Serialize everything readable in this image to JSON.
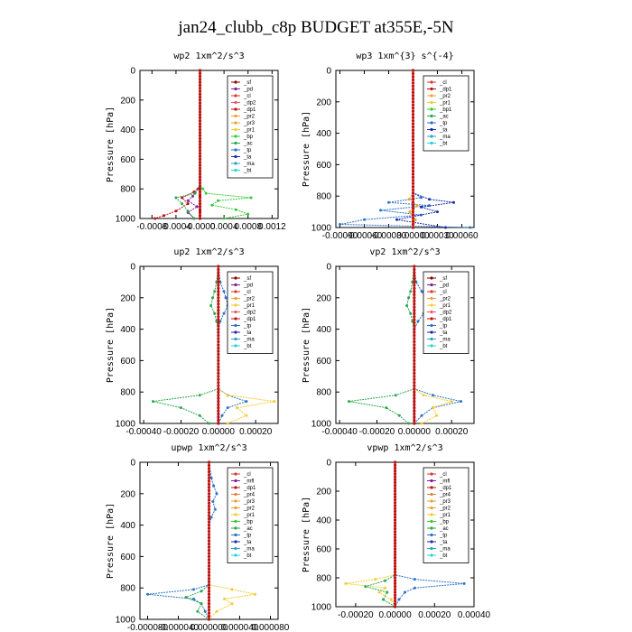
{
  "figure": {
    "title": "jan24_clubb_c8p  BUDGET at355E,-5N"
  },
  "colors": {
    "sf": "#8b0000",
    "pd": "#7a1fa2",
    "cl": "#d43a2a",
    "dp2": "#e0606b",
    "dp1": "#c01010",
    "pr2": "#f0a030",
    "pr1": "#f2cc33",
    "pr3": "#f0a030",
    "pr4": "#e08040",
    "bp": "#33cc33",
    "bp1": "#33cc33",
    "ac": "#2aa84a",
    "tp": "#2b73c8",
    "ta": "#1a2ba8",
    "ma": "#30a0c8",
    "bt": "#27d4d4",
    "mfl": "#7a1fa2"
  },
  "chart_data": [
    {
      "type": "line",
      "title": "wp2  1xm^2/s^3",
      "ylabel": "Pressure [hPa]",
      "xlim": [
        -0.001,
        0.0013
      ],
      "ylim": [
        0,
        1000
      ],
      "xticks": [
        -0.0008,
        -0.0004,
        0.0,
        0.0004,
        0.0008,
        0.0012
      ],
      "xtick_labels": [
        "-0.0008",
        "-0.0004",
        "-0.0000",
        "0.0004",
        "0.0008",
        "0.0012"
      ],
      "yticks": [
        0,
        200,
        400,
        600,
        800,
        1000
      ],
      "legend_position": "top-right",
      "legend": [
        "_sf",
        "_pd",
        "_cl",
        "_dp2",
        "_dp1",
        "_pr2",
        "_pr3",
        "_pr1",
        "_bp",
        "_ac",
        "_tp",
        "_ta",
        "_ma",
        "_bt"
      ],
      "series": [
        {
          "name": "_sf",
          "key": "sf",
          "p": [
            0,
            780,
            800,
            850,
            900,
            950,
            1000
          ],
          "x": [
            0,
            0,
            0,
            0,
            0,
            0,
            0
          ]
        },
        {
          "name": "_pd",
          "key": "pd",
          "p": [
            0,
            780,
            800,
            850,
            880,
            920,
            960,
            1000
          ],
          "x": [
            0,
            0,
            -3e-05,
            -0.00012,
            -0.0002,
            -5e-05,
            -0.0002,
            -0.0001
          ]
        },
        {
          "name": "_dp1",
          "key": "dp1",
          "p": [
            0,
            780,
            820,
            860,
            900,
            950,
            980,
            1000
          ],
          "x": [
            0,
            0,
            -0.0001,
            -0.0003,
            -0.0002,
            -0.0004,
            -0.0006,
            -0.00075
          ]
        },
        {
          "name": "_bp",
          "key": "bp",
          "p": [
            0,
            780,
            800,
            830,
            860,
            880,
            910,
            940,
            970,
            1000
          ],
          "x": [
            0,
            0,
            5e-05,
            0.0001,
            0.00085,
            0.0003,
            0.0002,
            0.0006,
            0.0008,
            0.0004
          ]
        },
        {
          "name": "_ac",
          "key": "ac",
          "p": [
            0,
            780,
            830,
            860,
            900,
            950,
            1000
          ],
          "x": [
            0,
            0,
            -8e-05,
            -0.0004,
            -0.0003,
            -0.0002,
            -0.0001
          ]
        }
      ]
    },
    {
      "type": "line",
      "title": "wp3  1xm^{3} s^{-4}",
      "ylabel": "Pressure [hPa]",
      "xlim": [
        -0.00095,
        0.00075
      ],
      "ylim": [
        0,
        1000
      ],
      "xticks": [
        -0.0009,
        -0.0006,
        -0.0003,
        0.0,
        0.0003,
        0.0006
      ],
      "xtick_labels": [
        "-0.00090",
        "-0.00060",
        "-0.00030",
        "0.00000",
        "0.00030",
        "0.00060"
      ],
      "yticks": [
        0,
        200,
        400,
        600,
        800,
        1000
      ],
      "legend_position": "top-right",
      "legend": [
        "_cl",
        "_dp1",
        "_pr2",
        "_pr1",
        "_bp1",
        "_ac",
        "_tp",
        "_ta",
        "_ma",
        "_bt"
      ],
      "series": [
        {
          "name": "_cl",
          "key": "cl",
          "p": [
            0,
            1000
          ],
          "x": [
            0,
            0
          ]
        },
        {
          "name": "_tp",
          "key": "tp",
          "p": [
            0,
            780,
            810,
            840,
            860,
            890,
            920,
            950,
            980,
            1000
          ],
          "x": [
            0,
            0,
            0.0001,
            -0.0003,
            0.0002,
            -0.0004,
            0.0001,
            -0.0006,
            -0.0009,
            0.0007
          ]
        },
        {
          "name": "_ta",
          "key": "ta",
          "p": [
            0,
            780,
            820,
            840,
            870,
            900,
            950,
            1000
          ],
          "x": [
            0,
            0,
            0.0002,
            0.0005,
            0.0001,
            0.0003,
            -0.0002,
            0.0004
          ]
        },
        {
          "name": "_pr2",
          "key": "pr2",
          "p": [
            0,
            780,
            820,
            860,
            900,
            950,
            1000
          ],
          "x": [
            0,
            0,
            -5e-05,
            5e-05,
            -4e-05,
            3e-05,
            0
          ]
        }
      ]
    },
    {
      "type": "line",
      "title": "up2  1xm^2/s^3",
      "ylabel": "Pressure [hPa]",
      "xlim": [
        -0.00042,
        0.00032
      ],
      "ylim": [
        0,
        1000
      ],
      "xticks": [
        -0.0004,
        -0.0002,
        0.0,
        0.0002
      ],
      "xtick_labels": [
        "-0.00040",
        "-0.00020",
        "0.00000",
        "0.00020"
      ],
      "yticks": [
        0,
        200,
        400,
        600,
        800,
        1000
      ],
      "legend_position": "top-right",
      "legend": [
        "_sf",
        "_pd",
        "_cl",
        "_pr2",
        "_pr1",
        "_dp2",
        "_dp1",
        "_tp",
        "_ta",
        "_ma",
        "_bt"
      ],
      "series": [
        {
          "name": "_sf",
          "key": "sf",
          "p": [
            0,
            1000
          ],
          "x": [
            0,
            0
          ]
        },
        {
          "name": "_tp",
          "key": "tp",
          "p": [
            0,
            100,
            160,
            200,
            250,
            300,
            350,
            400,
            780,
            820,
            860,
            900,
            950,
            1000
          ],
          "x": [
            0,
            1e-05,
            3e-05,
            4e-05,
            5e-05,
            3e-05,
            1e-05,
            0,
            0,
            5e-05,
            0.00015,
            5e-05,
            2e-05,
            0
          ]
        },
        {
          "name": "_ac",
          "key": "ac",
          "p": [
            0,
            100,
            160,
            200,
            250,
            300,
            350,
            400,
            780,
            820,
            860,
            900,
            950,
            1000
          ],
          "x": [
            0,
            -1e-05,
            -2e-05,
            -3e-05,
            -4e-05,
            -2e-05,
            -1e-05,
            0,
            0,
            -0.0001,
            -0.00035,
            -0.0002,
            -0.0001,
            -5e-05
          ]
        },
        {
          "name": "_pr1",
          "key": "pr1",
          "p": [
            0,
            780,
            820,
            860,
            900,
            950,
            1000
          ],
          "x": [
            0,
            0,
            5e-05,
            0.0003,
            0.0001,
            0.00015,
            5e-05
          ]
        }
      ]
    },
    {
      "type": "line",
      "title": "vp2  1xm^2/s^3",
      "ylabel": "Pressure [hPa]",
      "xlim": [
        -0.00042,
        0.00032
      ],
      "ylim": [
        0,
        1000
      ],
      "xticks": [
        -0.0004,
        -0.0002,
        0.0,
        0.0002
      ],
      "xtick_labels": [
        "-0.00040",
        "-0.00020",
        "0.00000",
        "0.00020"
      ],
      "yticks": [
        0,
        200,
        400,
        600,
        800,
        1000
      ],
      "legend_position": "top-right",
      "legend": [
        "_sf",
        "_pd",
        "_cl",
        "_pr2",
        "_pr1",
        "_dp2",
        "_dp1",
        "_tp",
        "_ta",
        "_ma",
        "_bt"
      ],
      "series": [
        {
          "name": "_sf",
          "key": "sf",
          "p": [
            0,
            1000
          ],
          "x": [
            0,
            0
          ]
        },
        {
          "name": "_tp",
          "key": "tp",
          "p": [
            0,
            100,
            160,
            200,
            250,
            300,
            350,
            400,
            780,
            820,
            860,
            900,
            950,
            1000
          ],
          "x": [
            0,
            1e-05,
            4e-05,
            6e-05,
            8e-05,
            5e-05,
            2e-05,
            0,
            0,
            0.0001,
            0.00025,
            0.0001,
            4e-05,
            0
          ]
        },
        {
          "name": "_ac",
          "key": "ac",
          "p": [
            0,
            100,
            160,
            200,
            250,
            300,
            350,
            400,
            780,
            820,
            860,
            900,
            950,
            1000
          ],
          "x": [
            0,
            -1e-05,
            -2e-05,
            -3e-05,
            -4e-05,
            -2e-05,
            -1e-05,
            0,
            0,
            -0.0001,
            -0.00035,
            -0.00015,
            -8e-05,
            -3e-05
          ]
        },
        {
          "name": "_pr1",
          "key": "pr1",
          "p": [
            0,
            780,
            820,
            860,
            900,
            950,
            1000
          ],
          "x": [
            0,
            0,
            5e-05,
            0.0002,
            0.0001,
            0.00012,
            4e-05
          ]
        }
      ]
    },
    {
      "type": "line",
      "title": "upwp  1xm^2/s^3",
      "ylabel": "Pressure [hPa]",
      "xlim": [
        -9e-05,
        9e-05
      ],
      "ylim": [
        0,
        1000
      ],
      "xticks": [
        -8e-05,
        -4e-05,
        0.0,
        4e-05,
        8e-05
      ],
      "xtick_labels": [
        "-0.000080",
        "-0.000040",
        "0.000000",
        "0.000040",
        "0.000080"
      ],
      "yticks": [
        0,
        200,
        400,
        600,
        800,
        1000
      ],
      "legend_position": "top-right",
      "legend": [
        "_cl",
        "_mfl",
        "_dp1",
        "_pr4",
        "_pr3",
        "_pr2",
        "_pr1",
        "_bp",
        "_ac",
        "_tp",
        "_ta",
        "_ma",
        "_bt"
      ],
      "series": [
        {
          "name": "_cl",
          "key": "cl",
          "p": [
            0,
            1000
          ],
          "x": [
            0,
            0
          ]
        },
        {
          "name": "_tp",
          "key": "tp",
          "p": [
            0,
            100,
            150,
            200,
            250,
            300,
            350,
            400,
            780,
            810,
            840,
            870,
            900,
            950,
            1000
          ],
          "x": [
            0,
            3e-06,
            6e-06,
            1e-05,
            5e-06,
            8e-06,
            3e-06,
            0,
            0,
            -2e-05,
            -8e-05,
            -2e-05,
            -1e-05,
            -5e-06,
            0
          ]
        },
        {
          "name": "_pr1",
          "key": "pr1",
          "p": [
            0,
            780,
            810,
            840,
            870,
            900,
            950,
            1000
          ],
          "x": [
            0,
            0,
            3e-05,
            6e-05,
            2e-05,
            3e-05,
            1e-05,
            0
          ]
        },
        {
          "name": "_ac",
          "key": "ac",
          "p": [
            0,
            780,
            820,
            860,
            900,
            950,
            1000
          ],
          "x": [
            0,
            0,
            -1e-05,
            -3e-05,
            -1e-05,
            -1.5e-05,
            0
          ]
        }
      ]
    },
    {
      "type": "line",
      "title": "vpwp  1xm^2/s^3",
      "ylabel": "Pressure [hPa]",
      "xlim": [
        -0.0003,
        0.0004
      ],
      "ylim": [
        0,
        1000
      ],
      "xticks": [
        -0.0002,
        0.0,
        0.0002,
        0.0004
      ],
      "xtick_labels": [
        "-0.00020",
        "0.00000",
        "0.00020",
        "0.00040"
      ],
      "yticks": [
        0,
        200,
        400,
        600,
        800,
        1000
      ],
      "legend_position": "top-right",
      "legend": [
        "_cl",
        "_mfl",
        "_dp1",
        "_pr4",
        "_pr3",
        "_pr2",
        "_pr1",
        "_bp",
        "_ac",
        "_tp",
        "_ta",
        "_ma",
        "_bt"
      ],
      "series": [
        {
          "name": "_cl",
          "key": "cl",
          "p": [
            0,
            1000
          ],
          "x": [
            0,
            0
          ]
        },
        {
          "name": "_tp",
          "key": "tp",
          "p": [
            0,
            780,
            810,
            840,
            870,
            900,
            950,
            1000
          ],
          "x": [
            0,
            0,
            0.0001,
            0.00035,
            0.0001,
            5e-05,
            2e-05,
            0
          ]
        },
        {
          "name": "_pr1",
          "key": "pr1",
          "p": [
            0,
            780,
            810,
            840,
            870,
            900,
            950,
            1000
          ],
          "x": [
            0,
            0,
            -0.0001,
            -0.00025,
            -5e-05,
            -8e-05,
            -2e-05,
            0
          ]
        },
        {
          "name": "_ac",
          "key": "ac",
          "p": [
            0,
            780,
            820,
            860,
            900,
            950,
            1000
          ],
          "x": [
            0,
            0,
            -5e-05,
            -0.00015,
            -4e-05,
            -6e-05,
            0
          ]
        }
      ]
    }
  ]
}
